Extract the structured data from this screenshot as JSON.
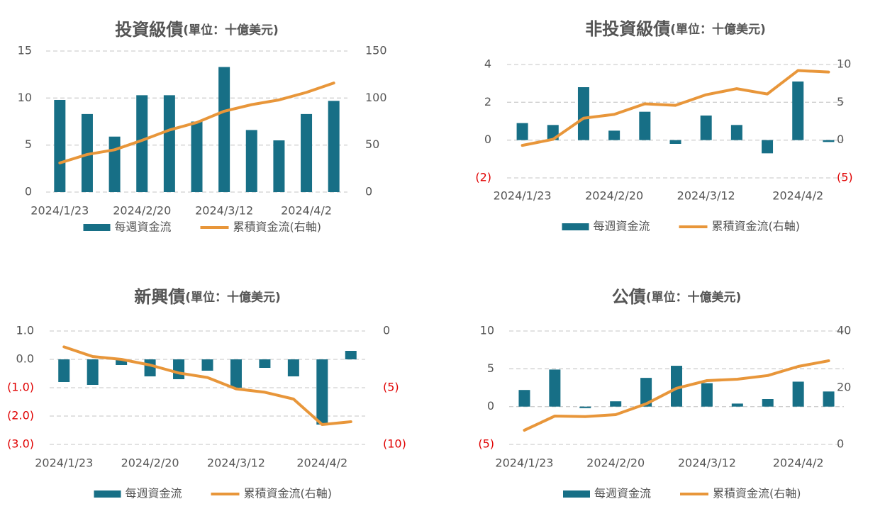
{
  "chart_data": [
    {
      "type": "bar",
      "title": "投資級債",
      "subtitle": "(單位：十億美元)",
      "categories": [
        "2024/1/23",
        null,
        null,
        "2024/2/20",
        null,
        null,
        "2024/3/12",
        null,
        null,
        "2024/4/2",
        null
      ],
      "series": [
        {
          "name": "每週資金流",
          "type": "bar",
          "color": "#176f86",
          "values": [
            9.8,
            8.3,
            5.9,
            10.3,
            10.3,
            7.5,
            13.3,
            6.6,
            5.5,
            8.3,
            9.7
          ]
        },
        {
          "name": "累積資金流(右軸)",
          "type": "line",
          "axis": "y2",
          "color": "#e8963a",
          "values": [
            31,
            40,
            45,
            55,
            66,
            74,
            86,
            93,
            98,
            106,
            116
          ]
        }
      ],
      "ylim": [
        0,
        15
      ],
      "yticks": [
        0,
        5,
        10,
        15
      ],
      "y2lim": [
        0,
        150
      ],
      "y2ticks": [
        0,
        50,
        100,
        150
      ],
      "grid": true,
      "negative_label_color": "#e00000"
    },
    {
      "type": "bar",
      "title": "非投資級債",
      "subtitle": "(單位：十億美元)",
      "categories": [
        "2024/1/23",
        null,
        null,
        "2024/2/20",
        null,
        null,
        "2024/3/12",
        null,
        null,
        "2024/4/2",
        null
      ],
      "series": [
        {
          "name": "每週資金流",
          "type": "bar",
          "color": "#176f86",
          "values": [
            0.9,
            0.8,
            2.8,
            0.5,
            1.5,
            -0.2,
            1.3,
            0.8,
            -0.7,
            3.1,
            -0.1
          ]
        },
        {
          "name": "累積資金流(右軸)",
          "type": "line",
          "axis": "y2",
          "color": "#e8963a",
          "values": [
            -0.7,
            0.1,
            2.9,
            3.4,
            4.8,
            4.6,
            6.0,
            6.8,
            6.1,
            9.2,
            9.0
          ]
        }
      ],
      "ylim": [
        -2,
        4
      ],
      "yticks": [
        {
          "value": -2,
          "label": "(2)"
        },
        0,
        2,
        4
      ],
      "y2lim": [
        -5,
        10
      ],
      "y2ticks": [
        {
          "value": -5,
          "label": "(5)"
        },
        0,
        5,
        10
      ],
      "grid": true,
      "negative_label_color": "#e00000"
    },
    {
      "type": "bar",
      "title": "新興債",
      "subtitle": "(單位：十億美元)",
      "categories": [
        "2024/1/23",
        null,
        null,
        "2024/2/20",
        null,
        null,
        "2024/3/12",
        null,
        null,
        "2024/4/2",
        null
      ],
      "series": [
        {
          "name": "每週資金流",
          "type": "bar",
          "color": "#176f86",
          "values": [
            -0.8,
            -0.9,
            -0.2,
            -0.6,
            -0.7,
            -0.4,
            -1.0,
            -0.3,
            -0.6,
            -2.3,
            0.3
          ]
        },
        {
          "name": "累積資金流(右軸)",
          "type": "line",
          "axis": "y2",
          "color": "#e8963a",
          "values": [
            -1.4,
            -2.25,
            -2.5,
            -3.0,
            -3.7,
            -4.1,
            -5.1,
            -5.4,
            -6.0,
            -8.25,
            -8.0
          ]
        }
      ],
      "ylim": [
        -3,
        1
      ],
      "yticks": [
        {
          "value": -3,
          "label": "(3.0)"
        },
        {
          "value": -2,
          "label": "(2.0)"
        },
        {
          "value": -1,
          "label": "(1.0)"
        },
        {
          "value": 0,
          "label": "0.0"
        },
        {
          "value": 1,
          "label": "1.0"
        }
      ],
      "y2lim": [
        -10,
        0
      ],
      "y2ticks": [
        {
          "value": -10,
          "label": "(10)"
        },
        {
          "value": -5,
          "label": "(5)"
        },
        0
      ],
      "grid": true,
      "negative_label_color": "#e00000"
    },
    {
      "type": "bar",
      "title": "公債",
      "subtitle": "(單位：十億美元)",
      "categories": [
        "2024/1/23",
        null,
        null,
        "2024/2/20",
        null,
        null,
        "2024/3/12",
        null,
        null,
        "2024/4/2",
        null
      ],
      "series": [
        {
          "name": "每週資金流",
          "type": "bar",
          "color": "#176f86",
          "values": [
            2.2,
            4.9,
            -0.2,
            0.7,
            3.8,
            5.4,
            3.1,
            0.4,
            1.0,
            3.3,
            2.0
          ]
        },
        {
          "name": "累積資金流(右軸)",
          "type": "line",
          "axis": "y2",
          "color": "#e8963a",
          "values": [
            5,
            10,
            9.8,
            10.5,
            14.3,
            19.8,
            22.5,
            23,
            24.3,
            27.5,
            29.5
          ]
        }
      ],
      "ylim": [
        -5,
        10
      ],
      "yticks": [
        {
          "value": -5,
          "label": "(5)"
        },
        0,
        5,
        10
      ],
      "y2lim": [
        0,
        40
      ],
      "y2ticks": [
        0,
        20,
        40
      ],
      "grid": true,
      "negative_label_color": "#e00000"
    }
  ]
}
